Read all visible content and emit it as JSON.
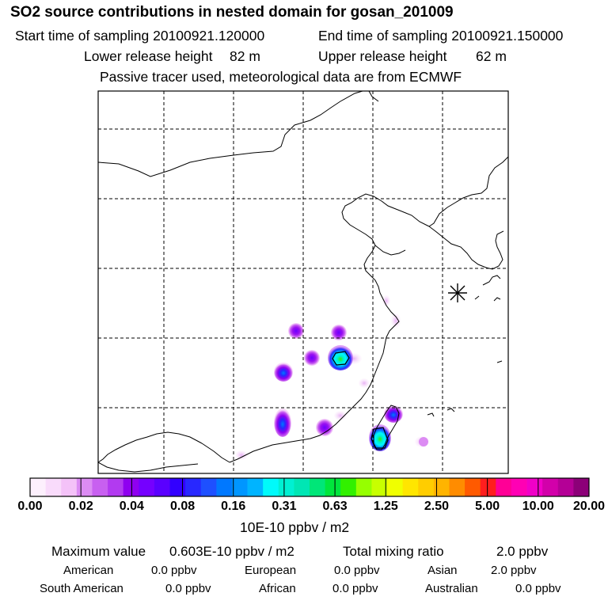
{
  "header": {
    "title": "SO2 source contributions in nested domain for gosan_201009",
    "start_label": "Start time of sampling 20100921.120000",
    "end_label": "End time of sampling 20100921.150000",
    "lower_label": "Lower release height",
    "lower_value": "82 m",
    "upper_label": "Upper release height",
    "upper_value": "62 m",
    "note": "Passive tracer used, meteorological data are from ECMWF"
  },
  "legend": {
    "tick_labels": [
      "0.00",
      "0.02",
      "0.04",
      "0.08",
      "0.16",
      "0.31",
      "0.63",
      "1.25",
      "2.50",
      "5.00",
      "10.00",
      "20.00"
    ],
    "unit": "10E-10 ppbv / m2",
    "colors": [
      "#fdf0fd",
      "#f9dbfb",
      "#f4c2f8",
      "#dc8cf3",
      "#c860f0",
      "#b23af0",
      "#8f00f0",
      "#7500ff",
      "#5a00ff",
      "#3200ff",
      "#2828ff",
      "#1e50ff",
      "#0078ff",
      "#0096ff",
      "#00b4ff",
      "#00fafa",
      "#00f0d2",
      "#00e6b4",
      "#00e678",
      "#00e63c",
      "#32f000",
      "#96ff00",
      "#c8ff00",
      "#f0ff00",
      "#ffe600",
      "#ffcd00",
      "#ffb400",
      "#ff8c00",
      "#ff5a00",
      "#ff1e1e",
      "#ff0096",
      "#ff00b4",
      "#f000c8",
      "#d200aa",
      "#b40096",
      "#8c0078"
    ]
  },
  "summary": {
    "max_label": "Maximum value",
    "max_value": "0.603E-10 ppbv / m2",
    "total_label": "Total mixing ratio",
    "total_value": "2.0 ppbv",
    "regions": [
      {
        "name": "American",
        "value": "0.0 ppbv"
      },
      {
        "name": "European",
        "value": "0.0 ppbv"
      },
      {
        "name": "Asian",
        "value": "2.0 ppbv"
      },
      {
        "name": "South American",
        "value": "0.0 ppbv"
      },
      {
        "name": "African",
        "value": "0.0 ppbv"
      },
      {
        "name": "Australian",
        "value": "0.0 ppbv"
      }
    ]
  },
  "map": {
    "receptor_marker": "asterisk-icon",
    "sources": [
      {
        "name": "source-a",
        "level": "low"
      },
      {
        "name": "source-b",
        "level": "low"
      },
      {
        "name": "source-c",
        "level": "low"
      },
      {
        "name": "source-d",
        "level": "high"
      },
      {
        "name": "source-e",
        "level": "medium"
      },
      {
        "name": "source-f",
        "level": "medium"
      },
      {
        "name": "source-g",
        "level": "low"
      },
      {
        "name": "source-h",
        "level": "medium"
      },
      {
        "name": "source-i",
        "level": "high"
      }
    ]
  }
}
